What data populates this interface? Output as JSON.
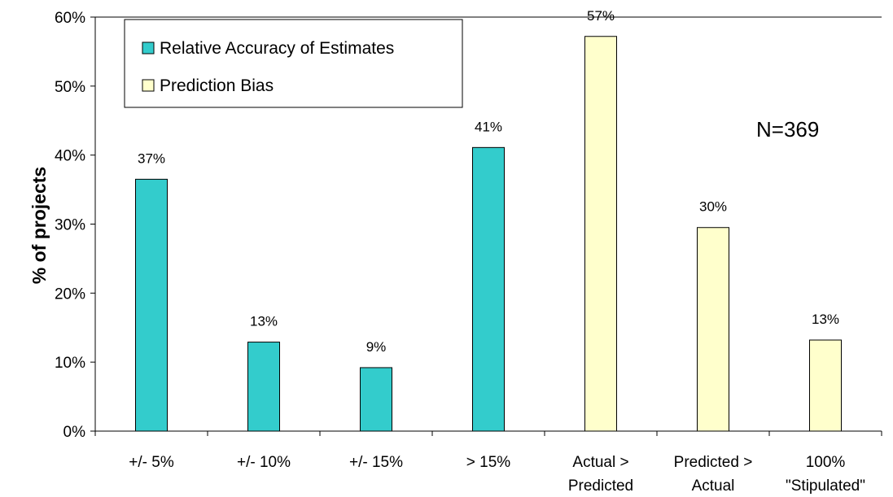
{
  "chart_data": {
    "type": "bar",
    "title": "",
    "xlabel": "",
    "ylabel": "% of projects",
    "ylim": [
      0,
      60
    ],
    "yticks": [
      "0%",
      "10%",
      "20%",
      "30%",
      "40%",
      "50%",
      "60%"
    ],
    "grid": false,
    "legend_position": "top-left",
    "annotation": "N=369",
    "categories": [
      [
        "+/- 5%"
      ],
      [
        "+/- 10%"
      ],
      [
        "+/- 15%"
      ],
      [
        "> 15%"
      ],
      [
        "Actual >",
        "Predicted"
      ],
      [
        "Predicted >",
        "Actual"
      ],
      [
        "100%",
        "\"Stipulated\""
      ]
    ],
    "series": [
      {
        "name": "Relative Accuracy of Estimates",
        "color": "#33cccc",
        "values": [
          36.5,
          12.9,
          9.2,
          41.1,
          null,
          null,
          null
        ],
        "labels": [
          "37%",
          "13%",
          "9%",
          "41%",
          "",
          "",
          ""
        ]
      },
      {
        "name": "Prediction Bias",
        "color": "#ffffcc",
        "values": [
          null,
          null,
          null,
          null,
          57.2,
          29.5,
          13.2
        ],
        "labels": [
          "",
          "",
          "",
          "",
          "57%",
          "30%",
          "13%"
        ]
      }
    ]
  }
}
